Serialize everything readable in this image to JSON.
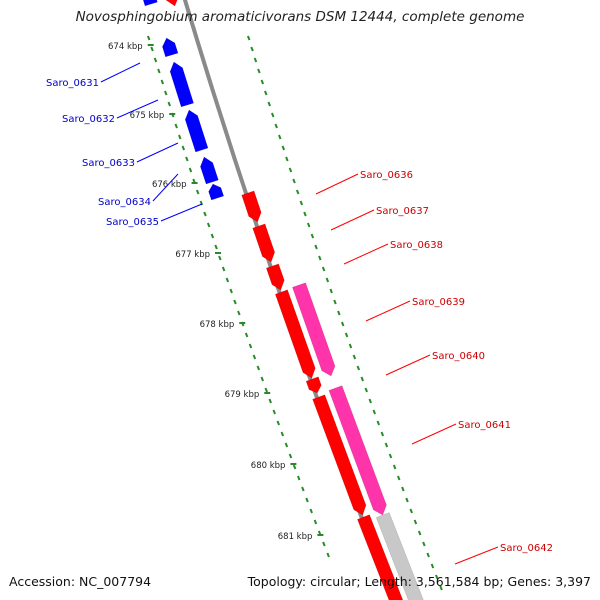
{
  "title": "Novosphingobium aromaticivorans DSM 12444, complete genome",
  "footer": {
    "accession": "Accession: NC_007794",
    "stats": "Topology: circular; Length: 3,561,584 bp; Genes: 3,397"
  },
  "colors": {
    "reverse_strand_gene": "#0000ff",
    "forward_strand_gene": "#ff0000",
    "forward_label": "#cc0000",
    "reverse_label": "#0000cc",
    "operon_track": "#ff33aa",
    "backbone": "#8a8a8a",
    "tick": "#2a8a2a"
  },
  "scale_ticks": [
    "674 kbp",
    "675 kbp",
    "676 kbp",
    "677 kbp",
    "678 kbp",
    "679 kbp",
    "680 kbp",
    "681 kbp"
  ],
  "reverse_genes": [
    "Saro_0631",
    "Saro_0632",
    "Saro_0633",
    "Saro_0634",
    "Saro_0635"
  ],
  "forward_genes": [
    "Saro_0636",
    "Saro_0637",
    "Saro_0638",
    "Saro_0639",
    "Saro_0640",
    "Saro_0641",
    "Saro_0642"
  ]
}
